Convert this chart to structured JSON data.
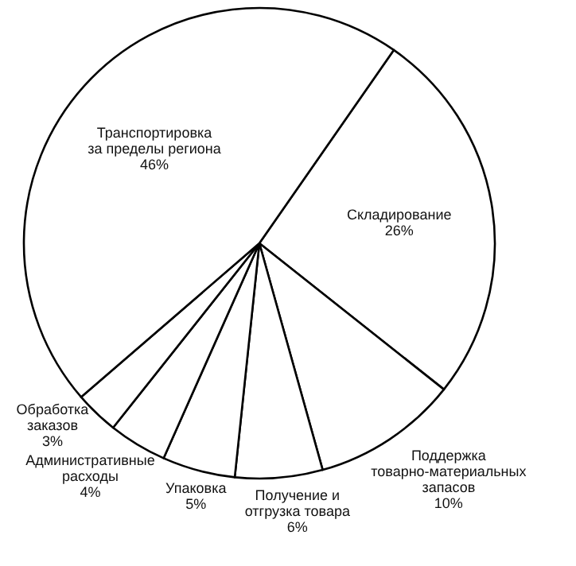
{
  "chart_data": {
    "type": "pie",
    "categories": [
      "Складирование",
      "Поддержка товарно-материальных запасов",
      "Получение и отгрузка товара",
      "Упаковка",
      "Административные расходы",
      "Обработка заказов",
      "Транспортировка за пределы региона"
    ],
    "values": [
      26,
      10,
      6,
      5,
      4,
      3,
      46
    ],
    "colors": [
      "#ffffff",
      "#ffffff",
      "#ffffff",
      "#ffffff",
      "#ffffff",
      "#ffffff",
      "#ffffff"
    ],
    "value_labels": [
      "26%",
      "10%",
      "6%",
      "5%",
      "4%",
      "3%",
      "46%"
    ]
  }
}
